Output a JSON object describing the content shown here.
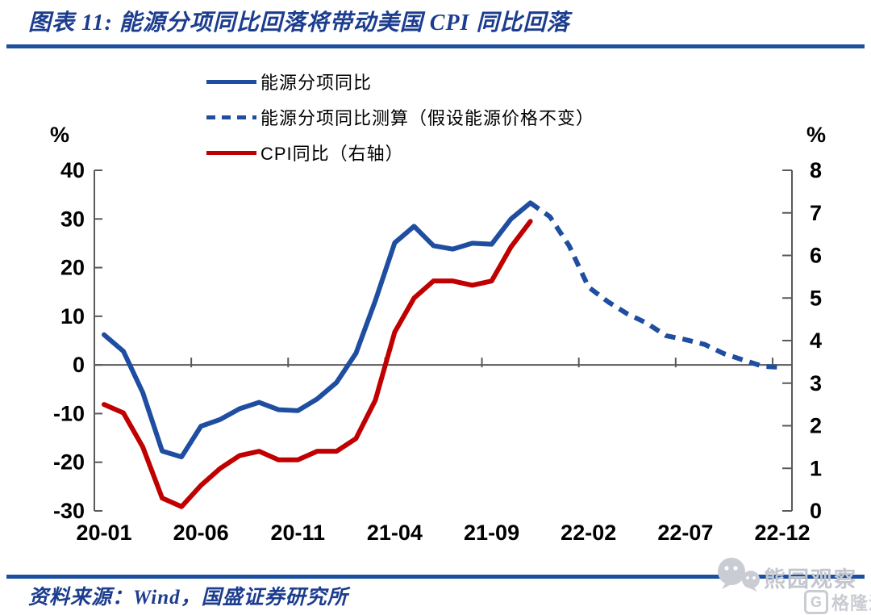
{
  "header": {
    "title": "图表 11:  能源分项同比回落将带动美国 CPI 同比回落"
  },
  "footer": {
    "source": "资料来源：Wind，国盛证券研究所"
  },
  "watermark": {
    "account_name": "熊园观察",
    "platform_logo_letter": "G",
    "platform_name": "格隆汇"
  },
  "colors": {
    "accent_blue": "#1F4EA0",
    "accent_red": "#C00000",
    "title_navy": "#1C3D8F",
    "rule_blue": "#1D4FA1",
    "axis_gray": "#595959",
    "watermark_gray": "#C9CCD2"
  },
  "chart_data": {
    "type": "line",
    "title": "",
    "grid": false,
    "legend_position": "top-left-inside",
    "months": [
      "20-01",
      "20-02",
      "20-03",
      "20-04",
      "20-05",
      "20-06",
      "20-07",
      "20-08",
      "20-09",
      "20-10",
      "20-11",
      "20-12",
      "21-01",
      "21-02",
      "21-03",
      "21-04",
      "21-05",
      "21-06",
      "21-07",
      "21-08",
      "21-09",
      "21-10",
      "21-11",
      "21-12",
      "22-01",
      "22-02",
      "22-03",
      "22-04",
      "22-05",
      "22-06",
      "22-07",
      "22-08",
      "22-09",
      "22-10",
      "22-11",
      "22-12"
    ],
    "x_tick_labels": [
      "20-01",
      "20-06",
      "20-11",
      "21-04",
      "21-09",
      "22-02",
      "22-07",
      "22-12"
    ],
    "left_axis": {
      "label": "%",
      "min": -30,
      "max": 40,
      "ticks": [
        40,
        30,
        20,
        10,
        0,
        -10,
        -20,
        -30
      ]
    },
    "right_axis": {
      "label": "%",
      "min": 0,
      "max": 8,
      "ticks": [
        8,
        7,
        6,
        5,
        4,
        3,
        2,
        1,
        0
      ]
    },
    "series": [
      {
        "name": "能源分项同比",
        "axis": "left",
        "color": "#1F4EA0",
        "dash": false,
        "points": [
          [
            "20-01",
            6.2
          ],
          [
            "20-02",
            2.8
          ],
          [
            "20-03",
            -5.7
          ],
          [
            "20-04",
            -17.7
          ],
          [
            "20-05",
            -18.9
          ],
          [
            "20-06",
            -12.6
          ],
          [
            "20-07",
            -11.2
          ],
          [
            "20-08",
            -9.0
          ],
          [
            "20-09",
            -7.7
          ],
          [
            "20-10",
            -9.2
          ],
          [
            "20-11",
            -9.4
          ],
          [
            "20-12",
            -7.0
          ],
          [
            "21-01",
            -3.6
          ],
          [
            "21-02",
            2.4
          ],
          [
            "21-03",
            13.2
          ],
          [
            "21-04",
            25.1
          ],
          [
            "21-05",
            28.5
          ],
          [
            "21-06",
            24.5
          ],
          [
            "21-07",
            23.8
          ],
          [
            "21-08",
            25.0
          ],
          [
            "21-09",
            24.8
          ],
          [
            "21-10",
            30.0
          ],
          [
            "21-11",
            33.3
          ]
        ]
      },
      {
        "name": "能源分项同比测算（假设能源价格不变）",
        "axis": "left",
        "color": "#1F4EA0",
        "dash": true,
        "points": [
          [
            "21-11",
            33.3
          ],
          [
            "21-12",
            30.5
          ],
          [
            "22-01",
            24.5
          ],
          [
            "22-02",
            16.0
          ],
          [
            "22-03",
            13.0
          ],
          [
            "22-04",
            10.5
          ],
          [
            "22-05",
            8.6
          ],
          [
            "22-06",
            6.0
          ],
          [
            "22-07",
            5.2
          ],
          [
            "22-08",
            4.2
          ],
          [
            "22-09",
            2.3
          ],
          [
            "22-10",
            1.0
          ],
          [
            "22-11",
            -0.3
          ],
          [
            "22-12",
            -0.5
          ]
        ]
      },
      {
        "name": "CPI同比（右轴）",
        "axis": "right",
        "color": "#C00000",
        "dash": false,
        "points": [
          [
            "20-01",
            2.5
          ],
          [
            "20-02",
            2.3
          ],
          [
            "20-03",
            1.5
          ],
          [
            "20-04",
            0.3
          ],
          [
            "20-05",
            0.1
          ],
          [
            "20-06",
            0.6
          ],
          [
            "20-07",
            1.0
          ],
          [
            "20-08",
            1.3
          ],
          [
            "20-09",
            1.4
          ],
          [
            "20-10",
            1.2
          ],
          [
            "20-11",
            1.2
          ],
          [
            "20-12",
            1.4
          ],
          [
            "21-01",
            1.4
          ],
          [
            "21-02",
            1.7
          ],
          [
            "21-03",
            2.6
          ],
          [
            "21-04",
            4.2
          ],
          [
            "21-05",
            5.0
          ],
          [
            "21-06",
            5.4
          ],
          [
            "21-07",
            5.4
          ],
          [
            "21-08",
            5.3
          ],
          [
            "21-09",
            5.4
          ],
          [
            "21-10",
            6.2
          ],
          [
            "21-11",
            6.8
          ]
        ]
      }
    ]
  }
}
